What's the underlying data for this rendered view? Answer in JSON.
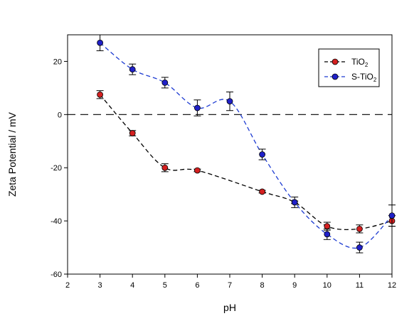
{
  "chart_data": {
    "type": "line",
    "xlabel": "pH",
    "ylabel": "Zeta Potential / mV",
    "xlim": [
      2,
      12
    ],
    "ylim": [
      -60,
      30
    ],
    "x_ticks": [
      2,
      3,
      4,
      5,
      6,
      7,
      8,
      9,
      10,
      11,
      12
    ],
    "y_ticks": [
      -60,
      -40,
      -20,
      0,
      20
    ],
    "reference_line": {
      "y": 0,
      "style": "dashed"
    },
    "grid": false,
    "legend_position": "top-right",
    "series": [
      {
        "name": "TiO",
        "name_subscript": "2",
        "color": "#d42020",
        "line_color": "#000000",
        "x": [
          3,
          4,
          5,
          6,
          8,
          9,
          10,
          11,
          12
        ],
        "y": [
          7.5,
          -7,
          -20,
          -21,
          -29,
          -33,
          -42,
          -43,
          -40
        ],
        "error": [
          1.5,
          1,
          1.5,
          0.5,
          0.5,
          0.5,
          1.5,
          1.5,
          2
        ]
      },
      {
        "name": "S-TiO",
        "name_subscript": "2",
        "color": "#2020c8",
        "line_color": "#1e3cd2",
        "x": [
          3,
          4,
          5,
          6,
          7,
          8,
          9,
          10,
          11,
          12
        ],
        "y": [
          27,
          17,
          12,
          2.5,
          5,
          -15,
          -33,
          -45,
          -50,
          -38
        ],
        "error": [
          3,
          2,
          2,
          3,
          3.5,
          2,
          2,
          2,
          2,
          4
        ]
      }
    ]
  }
}
